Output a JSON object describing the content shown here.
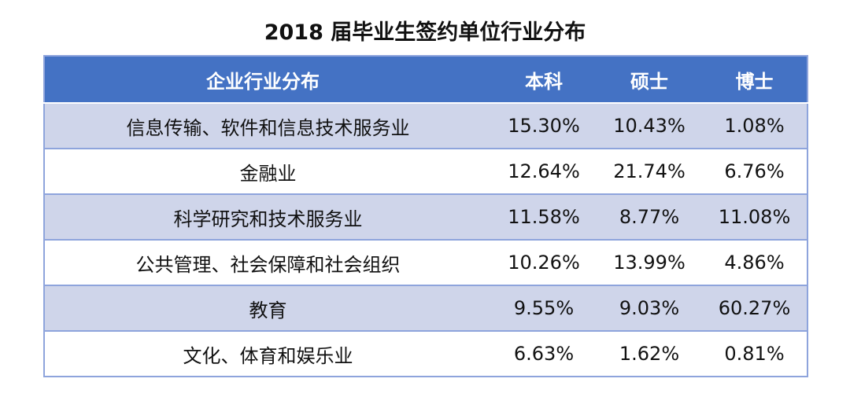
{
  "title": "2018 届毕业生签约单位行业分布",
  "table": {
    "headers": [
      "企业行业分布",
      "本科",
      "硕士",
      "博士"
    ],
    "rows": [
      [
        "信息传输、软件和信息技术服务业",
        "15.30%",
        "10.43%",
        "1.08%"
      ],
      [
        "金融业",
        "12.64%",
        "21.74%",
        "6.76%"
      ],
      [
        "科学研究和技术服务业",
        "11.58%",
        "8.77%",
        "11.08%"
      ],
      [
        "公共管理、社会保障和社会组织",
        "10.26%",
        "13.99%",
        "4.86%"
      ],
      [
        "教育",
        "9.55%",
        "9.03%",
        "60.27%"
      ],
      [
        "文化、体育和娱乐业",
        "6.63%",
        "1.62%",
        "0.81%"
      ]
    ]
  },
  "colors": {
    "header_bg": "#4472c4",
    "band_bg": "#cfd5ea",
    "border": "#8ea4dc"
  }
}
